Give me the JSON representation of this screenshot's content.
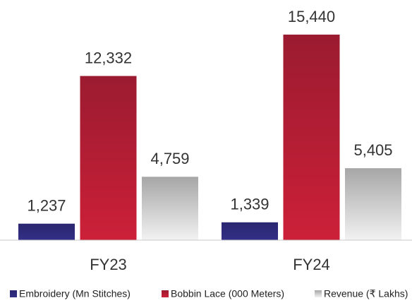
{
  "chart_data": {
    "type": "bar",
    "categories": [
      "FY23",
      "FY24"
    ],
    "series": [
      {
        "name": "Embroidery (Mn Stitches)",
        "color": [
          "#2a2670",
          "#332f86"
        ],
        "values": [
          1237,
          1339
        ],
        "value_labels": [
          "1,237",
          "1,339"
        ]
      },
      {
        "name": "Bobbin Lace (000 Meters)",
        "color": [
          "#9b1b30",
          "#cc2038"
        ],
        "values": [
          12332,
          15440
        ],
        "value_labels": [
          "12,332",
          "15,440"
        ]
      },
      {
        "name": "Revenue (₹ Lakhs)",
        "color": [
          "#a6a6a6",
          "#f2f2f2"
        ],
        "values": [
          4759,
          5405
        ],
        "value_labels": [
          "4,759",
          "5,405"
        ]
      }
    ],
    "legend": "bottom"
  }
}
